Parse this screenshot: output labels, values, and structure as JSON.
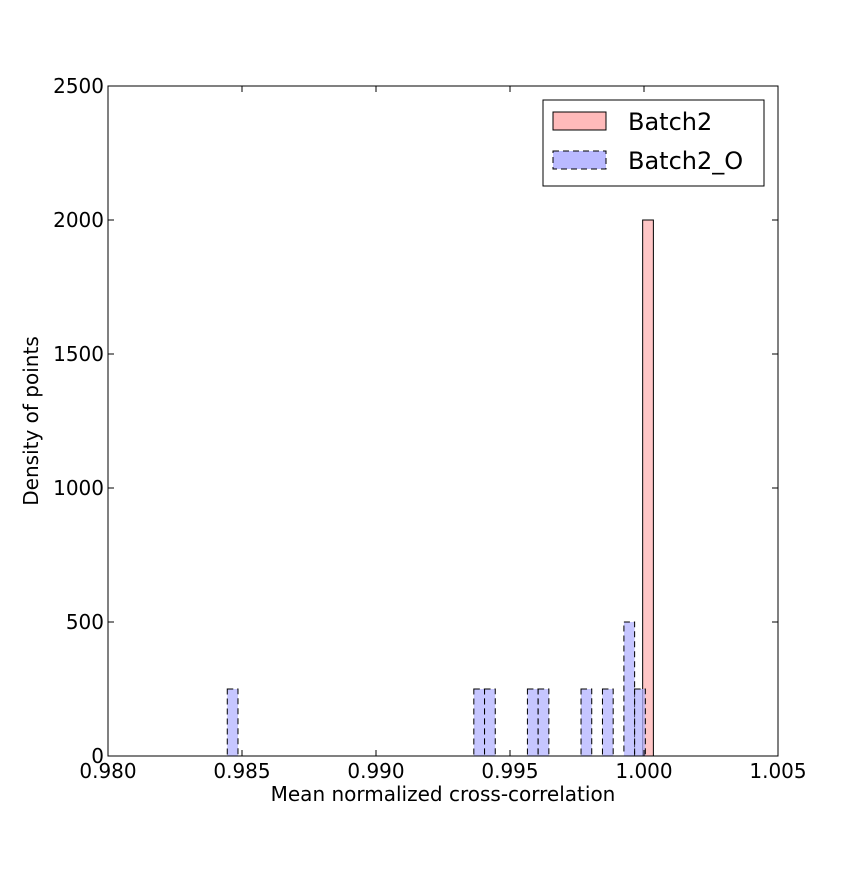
{
  "chart_data": {
    "type": "bar",
    "title": "",
    "xlabel": "Mean normalized cross-correlation",
    "ylabel": "Density of points",
    "xlim": [
      0.98,
      1.005
    ],
    "ylim": [
      0,
      2500
    ],
    "xticks": [
      "0.980",
      "0.985",
      "0.990",
      "0.995",
      "1.000",
      "1.005"
    ],
    "yticks": [
      "0",
      "500",
      "1000",
      "1500",
      "2000",
      "2500"
    ],
    "grid": false,
    "legend_position": "top-right",
    "series": [
      {
        "name": "Batch2",
        "color": "#ffb3b3",
        "linestyle": "solid",
        "bins": [
          {
            "x0": 0.99995,
            "x1": 1.00035,
            "value": 2000
          }
        ]
      },
      {
        "name": "Batch2_O",
        "color": "#b3b3ff",
        "linestyle": "dashed",
        "bins": [
          {
            "x0": 0.98445,
            "x1": 0.98485,
            "value": 250
          },
          {
            "x0": 0.99365,
            "x1": 0.99405,
            "value": 250
          },
          {
            "x0": 0.99405,
            "x1": 0.99445,
            "value": 250
          },
          {
            "x0": 0.99565,
            "x1": 0.99605,
            "value": 250
          },
          {
            "x0": 0.99605,
            "x1": 0.99645,
            "value": 250
          },
          {
            "x0": 0.99765,
            "x1": 0.99805,
            "value": 250
          },
          {
            "x0": 0.99845,
            "x1": 0.99885,
            "value": 250
          },
          {
            "x0": 0.99925,
            "x1": 0.99965,
            "value": 500
          },
          {
            "x0": 0.99965,
            "x1": 1.00005,
            "value": 250
          }
        ]
      }
    ]
  }
}
